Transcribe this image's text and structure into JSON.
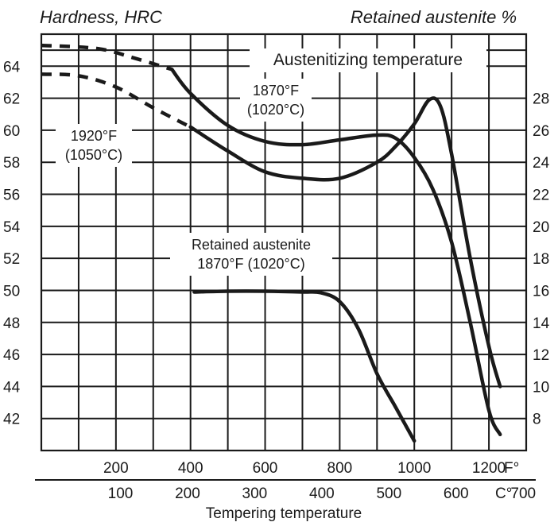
{
  "chart_data": {
    "type": "line",
    "left_axis_title": "Hardness, HRC",
    "right_axis_title": "Retained austenite %",
    "x_axis_title": "Tempering temperature",
    "x_unit_f": "F°",
    "x_unit_c": "C°",
    "x_range_f": [
      0,
      1300
    ],
    "hrc_range": [
      40,
      66
    ],
    "ra_range": [
      6,
      32
    ],
    "hrc_ticks": [
      "64",
      "62",
      "60",
      "58",
      "56",
      "54",
      "52",
      "50",
      "48",
      "46",
      "44",
      "42"
    ],
    "ra_ticks": [
      "28",
      "26",
      "24",
      "22",
      "20",
      "18",
      "16",
      "14",
      "12",
      "10",
      "8"
    ],
    "f_ticks": [
      "200",
      "400",
      "600",
      "800",
      "1000",
      "1200"
    ],
    "c_ticks": [
      "100",
      "200",
      "300",
      "400",
      "500",
      "600",
      "700"
    ],
    "annotations": {
      "austenitizing": "Austenitizing temperature",
      "curve_1870_f": "1870°F",
      "curve_1870_c": "(1020°C)",
      "curve_1920_f": "1920°F",
      "curve_1920_c": "(1050°C)",
      "ra_title": "Retained austenite",
      "ra_temp": "1870°F (1020°C)"
    },
    "series": [
      {
        "label": "1870°F (1020°C)",
        "axis": "hardness",
        "dashed_segment": {
          "x": [
            0,
            150,
            250,
            350
          ],
          "y": [
            65.3,
            65.1,
            64.5,
            63.8
          ]
        },
        "x": [
          350,
          400,
          500,
          600,
          700,
          800,
          900,
          950,
          1000,
          1050,
          1100,
          1150,
          1200,
          1230
        ],
        "y": [
          63.8,
          62.3,
          60.3,
          59.3,
          59.1,
          59.4,
          59.7,
          59.5,
          58.3,
          56.3,
          53.0,
          48.0,
          42.5,
          41.0
        ]
      },
      {
        "label": "1920°F (1050°C)",
        "axis": "hardness",
        "dashed_segment": {
          "x": [
            0,
            100,
            200,
            300,
            400
          ],
          "y": [
            63.5,
            63.4,
            62.7,
            61.4,
            60.2
          ]
        },
        "x": [
          400,
          500,
          600,
          700,
          800,
          900,
          950,
          1000,
          1040,
          1070,
          1100,
          1150,
          1200,
          1230
        ],
        "y": [
          60.2,
          58.7,
          57.4,
          57.0,
          57.0,
          58.0,
          59.0,
          60.4,
          61.9,
          61.5,
          58.5,
          52.0,
          46.5,
          44.0
        ]
      },
      {
        "label": "Retained austenite",
        "axis": "retained_austenite",
        "x": [
          410,
          500,
          600,
          700,
          750,
          800,
          850,
          900,
          950,
          1000
        ],
        "y": [
          15.9,
          15.95,
          15.95,
          15.9,
          15.85,
          15.3,
          13.6,
          10.8,
          8.7,
          6.6
        ]
      }
    ]
  }
}
